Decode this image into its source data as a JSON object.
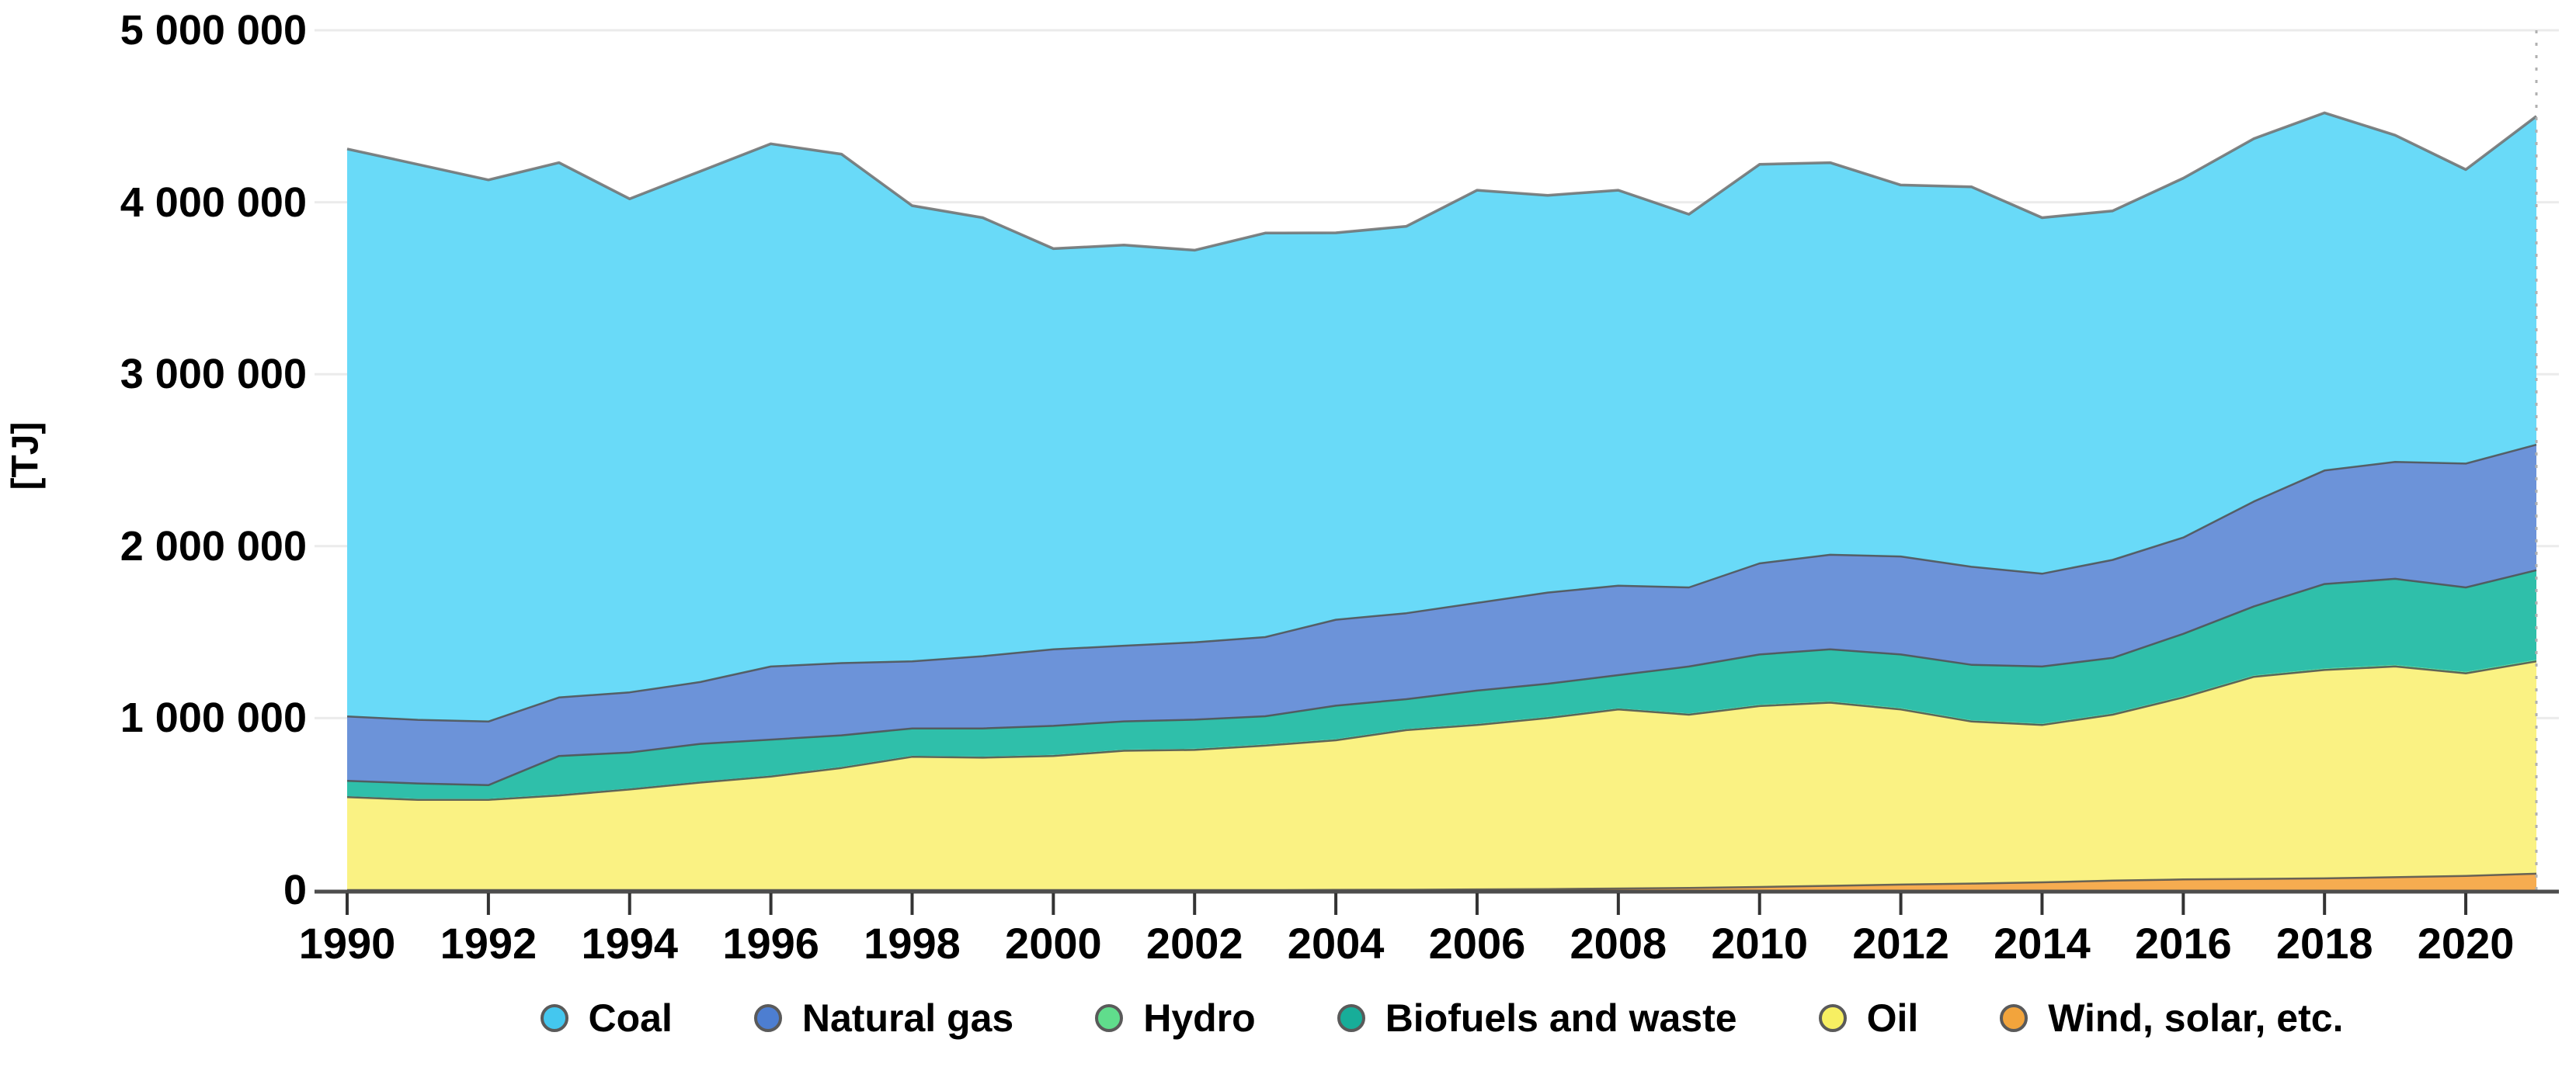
{
  "chart": {
    "unit_label": "[TJ]",
    "y_axis": {
      "tick_values": [
        0,
        1000000,
        2000000,
        3000000,
        4000000,
        5000000
      ],
      "tick_labels": [
        "0",
        "1 000 000",
        "2 000 000",
        "3 000 000",
        "4 000 000",
        "5 000 000"
      ]
    },
    "x_axis": {
      "tick_years": [
        1990,
        1992,
        1994,
        1996,
        1998,
        2000,
        2002,
        2004,
        2006,
        2008,
        2010,
        2012,
        2014,
        2016,
        2018,
        2020
      ]
    },
    "legend": [
      {
        "label": "Coal",
        "dot_color": "#44C7EF"
      },
      {
        "label": "Natural gas",
        "dot_color": "#4D7ED1"
      },
      {
        "label": "Hydro",
        "dot_color": "#60DD8C"
      },
      {
        "label": "Biofuels and waste",
        "dot_color": "#17AD99"
      },
      {
        "label": "Oil",
        "dot_color": "#F7EF62"
      },
      {
        "label": "Wind, solar, etc.",
        "dot_color": "#F2A43C"
      }
    ],
    "colors": {
      "grid": "#ebebeb",
      "axis": "#4d4d4d",
      "boundary_stroke": "#4f4f4f",
      "top_stroke": "#6e6e6e",
      "projection_line": "#b0b0b0"
    }
  },
  "chart_data": {
    "type": "area",
    "stacked": true,
    "title": "",
    "ylabel": "[TJ]",
    "xlabel": "",
    "ylim": [
      0,
      5000000
    ],
    "xlim": [
      1990,
      2021
    ],
    "grid": true,
    "legend_position": "bottom",
    "x": [
      1990,
      1991,
      1992,
      1993,
      1994,
      1995,
      1996,
      1997,
      1998,
      1999,
      2000,
      2001,
      2002,
      2003,
      2004,
      2005,
      2006,
      2007,
      2008,
      2009,
      2010,
      2011,
      2012,
      2013,
      2014,
      2015,
      2016,
      2017,
      2018,
      2019,
      2020,
      2021
    ],
    "series_order_note": "bottom of stack to top of stack",
    "series": [
      {
        "name": "Wind, solar, etc.",
        "color": "#F6AC50",
        "values": [
          0,
          0,
          0,
          0,
          0,
          0,
          0,
          0,
          0,
          0,
          0,
          0,
          0,
          0,
          1000,
          2000,
          4000,
          6000,
          9000,
          12000,
          18000,
          25000,
          32000,
          38000,
          45000,
          55000,
          62000,
          65000,
          68000,
          75000,
          82000,
          95000
        ]
      },
      {
        "name": "Oil",
        "color": "#FAF283",
        "values": [
          540000,
          525000,
          525000,
          550000,
          585000,
          625000,
          660000,
          710000,
          775000,
          770000,
          780000,
          810000,
          815000,
          840000,
          870000,
          928000,
          956000,
          994000,
          1041000,
          1008000,
          1052000,
          1065000,
          1018000,
          942000,
          915000,
          965000,
          1058000,
          1175000,
          1212000,
          1225000,
          1178000,
          1235000
        ]
      },
      {
        "name": "Hydro",
        "color": "#60DD8C",
        "values": [
          6000,
          6000,
          6000,
          6000,
          6000,
          6000,
          6000,
          6000,
          6000,
          6000,
          6000,
          7000,
          7000,
          7000,
          7000,
          7000,
          7000,
          7000,
          7000,
          7000,
          8000,
          8000,
          8000,
          8000,
          8000,
          8000,
          8000,
          8000,
          9000,
          9000,
          9000,
          9000
        ]
      },
      {
        "name": "Biofuels and waste",
        "color": "#2FBFAA",
        "values": [
          89000,
          89000,
          79000,
          224000,
          209000,
          219000,
          209000,
          184000,
          159000,
          164000,
          169000,
          164000,
          169000,
          164000,
          194000,
          173000,
          193000,
          193000,
          193000,
          273000,
          292000,
          302000,
          312000,
          322000,
          332000,
          322000,
          362000,
          402000,
          491000,
          501000,
          491000,
          521000
        ]
      },
      {
        "name": "Natural gas",
        "color": "#6C93D9",
        "values": [
          375000,
          370000,
          370000,
          340000,
          350000,
          360000,
          425000,
          420000,
          390000,
          420000,
          445000,
          440000,
          450000,
          460000,
          500000,
          500000,
          510000,
          530000,
          520000,
          460000,
          530000,
          550000,
          570000,
          570000,
          540000,
          570000,
          560000,
          610000,
          660000,
          680000,
          720000,
          730000
        ]
      },
      {
        "name": "Coal",
        "color": "#69DAF8",
        "values": [
          3300000,
          3230000,
          3150000,
          3110000,
          2870000,
          2970000,
          3040000,
          2960000,
          2650000,
          2550000,
          2330000,
          2330000,
          2280000,
          2350000,
          2250000,
          2250000,
          2400000,
          2310000,
          2300000,
          2170000,
          2320000,
          2280000,
          2160000,
          2210000,
          2070000,
          2030000,
          2090000,
          2110000,
          2080000,
          1900000,
          1710000,
          1910000
        ]
      }
    ]
  }
}
